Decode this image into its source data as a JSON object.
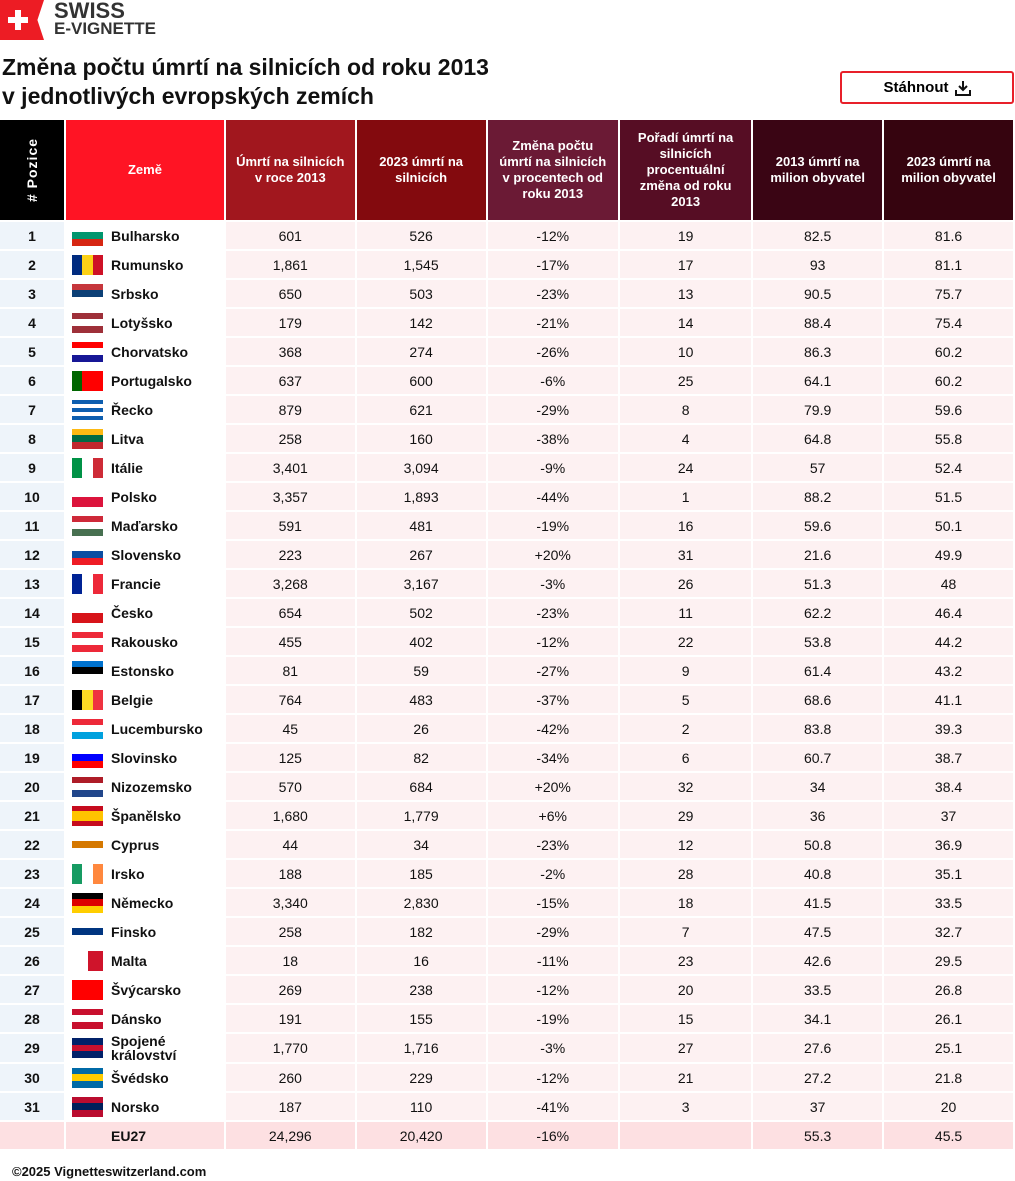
{
  "brand": {
    "line1": "SWISS",
    "line2": "E-VIGNETTE"
  },
  "title": "Změna počtu úmrtí na silnicích od roku 2013 v jednotlivých evropských zemích",
  "download_label": "Stáhnout",
  "header": {
    "pos": "# Pozice",
    "country": "Země",
    "cols": [
      "Úmrtí na silnicích v roce 2013",
      "2023 úmrtí na silnicích",
      "Změna počtu úmrtí na silnicích v procentech od roku 2013",
      "Pořadí úmrtí na silnicích procentuální změna od roku 2013",
      "2013 úmrtí na milion obyvatel",
      "2023 úmrtí na milion obyvatel"
    ],
    "colors": [
      "#000000",
      "#ff1424",
      "#a1171e",
      "#830a0e",
      "#6b1a35",
      "#560d24",
      "#3a0514",
      "#36040f"
    ]
  },
  "rows": [
    [
      "1",
      "Bulharsko",
      "601",
      "526",
      "-12%",
      "19",
      "82.5",
      "81.6",
      [
        "h",
        "#ffffff",
        "#00966e",
        "#d62612"
      ]
    ],
    [
      "2",
      "Rumunsko",
      "1,861",
      "1,545",
      "-17%",
      "17",
      "93",
      "81.1",
      [
        "v",
        "#002b7f",
        "#fcd116",
        "#ce1126"
      ]
    ],
    [
      "3",
      "Srbsko",
      "650",
      "503",
      "-23%",
      "13",
      "90.5",
      "75.7",
      [
        "h",
        "#c6363c",
        "#0c4076",
        "#ffffff"
      ]
    ],
    [
      "4",
      "Lotyšsko",
      "179",
      "142",
      "-21%",
      "14",
      "88.4",
      "75.4",
      [
        "h",
        "#9e3039",
        "#ffffff",
        "#9e3039"
      ]
    ],
    [
      "5",
      "Chorvatsko",
      "368",
      "274",
      "-26%",
      "10",
      "86.3",
      "60.2",
      [
        "h",
        "#ff0000",
        "#ffffff",
        "#171796"
      ]
    ],
    [
      "6",
      "Portugalsko",
      "637",
      "600",
      "-6%",
      "25",
      "64.1",
      "60.2",
      [
        "v",
        "#006600",
        "#ff0000",
        "#ff0000"
      ]
    ],
    [
      "7",
      "Řecko",
      "879",
      "621",
      "-29%",
      "8",
      "79.9",
      "59.6",
      [
        "h",
        "#0d5eaf",
        "#ffffff",
        "#0d5eaf",
        "#ffffff",
        "#0d5eaf"
      ]
    ],
    [
      "8",
      "Litva",
      "258",
      "160",
      "-38%",
      "4",
      "64.8",
      "55.8",
      [
        "h",
        "#fdb913",
        "#006a44",
        "#c1272d"
      ]
    ],
    [
      "9",
      "Itálie",
      "3,401",
      "3,094",
      "-9%",
      "24",
      "57",
      "52.4",
      [
        "v",
        "#009246",
        "#ffffff",
        "#ce2b37"
      ]
    ],
    [
      "10",
      "Polsko",
      "3,357",
      "1,893",
      "-44%",
      "1",
      "88.2",
      "51.5",
      [
        "h",
        "#ffffff",
        "#dc143c"
      ]
    ],
    [
      "11",
      "Maďarsko",
      "591",
      "481",
      "-19%",
      "16",
      "59.6",
      "50.1",
      [
        "h",
        "#ce2939",
        "#ffffff",
        "#477050"
      ]
    ],
    [
      "12",
      "Slovensko",
      "223",
      "267",
      "+20%",
      "31",
      "21.6",
      "49.9",
      [
        "h",
        "#ffffff",
        "#0b4ea2",
        "#ee1c25"
      ]
    ],
    [
      "13",
      "Francie",
      "3,268",
      "3,167",
      "-3%",
      "26",
      "51.3",
      "48",
      [
        "v",
        "#002395",
        "#ffffff",
        "#ed2939"
      ]
    ],
    [
      "14",
      "Česko",
      "654",
      "502",
      "-23%",
      "11",
      "62.2",
      "46.4",
      [
        "h",
        "#ffffff",
        "#d7141a"
      ]
    ],
    [
      "15",
      "Rakousko",
      "455",
      "402",
      "-12%",
      "22",
      "53.8",
      "44.2",
      [
        "h",
        "#ed2939",
        "#ffffff",
        "#ed2939"
      ]
    ],
    [
      "16",
      "Estonsko",
      "81",
      "59",
      "-27%",
      "9",
      "61.4",
      "43.2",
      [
        "h",
        "#0072ce",
        "#000000",
        "#ffffff"
      ]
    ],
    [
      "17",
      "Belgie",
      "764",
      "483",
      "-37%",
      "5",
      "68.6",
      "41.1",
      [
        "v",
        "#000000",
        "#fdda24",
        "#ef3340"
      ]
    ],
    [
      "18",
      "Lucembursko",
      "45",
      "26",
      "-42%",
      "2",
      "83.8",
      "39.3",
      [
        "h",
        "#ed2939",
        "#ffffff",
        "#00a1de"
      ]
    ],
    [
      "19",
      "Slovinsko",
      "125",
      "82",
      "-34%",
      "6",
      "60.7",
      "38.7",
      [
        "h",
        "#ffffff",
        "#0000ff",
        "#ff0000"
      ]
    ],
    [
      "20",
      "Nizozemsko",
      "570",
      "684",
      "+20%",
      "32",
      "34",
      "38.4",
      [
        "h",
        "#ae1c28",
        "#ffffff",
        "#21468b"
      ]
    ],
    [
      "21",
      "Španělsko",
      "1,680",
      "1,779",
      "+6%",
      "29",
      "36",
      "37",
      [
        "h",
        "#c60b1e",
        "#ffc400",
        "#ffc400",
        "#c60b1e"
      ]
    ],
    [
      "22",
      "Cyprus",
      "44",
      "34",
      "-23%",
      "12",
      "50.8",
      "36.9",
      [
        "h",
        "#ffffff",
        "#d57800",
        "#ffffff"
      ]
    ],
    [
      "23",
      "Irsko",
      "188",
      "185",
      "-2%",
      "28",
      "40.8",
      "35.1",
      [
        "v",
        "#169b62",
        "#ffffff",
        "#ff883e"
      ]
    ],
    [
      "24",
      "Německo",
      "3,340",
      "2,830",
      "-15%",
      "18",
      "41.5",
      "33.5",
      [
        "h",
        "#000000",
        "#dd0000",
        "#ffce00"
      ]
    ],
    [
      "25",
      "Finsko",
      "258",
      "182",
      "-29%",
      "7",
      "47.5",
      "32.7",
      [
        "h",
        "#ffffff",
        "#003580",
        "#ffffff"
      ]
    ],
    [
      "26",
      "Malta",
      "18",
      "16",
      "-11%",
      "23",
      "42.6",
      "29.5",
      [
        "v",
        "#ffffff",
        "#cf142b"
      ]
    ],
    [
      "27",
      "Švýcarsko",
      "269",
      "238",
      "-12%",
      "20",
      "33.5",
      "26.8",
      [
        "h",
        "#ff0000"
      ]
    ],
    [
      "28",
      "Dánsko",
      "191",
      "155",
      "-19%",
      "15",
      "34.1",
      "26.1",
      [
        "h",
        "#c8102e",
        "#ffffff",
        "#c8102e"
      ]
    ],
    [
      "29",
      "Spojené království",
      "1,770",
      "1,716",
      "-3%",
      "27",
      "27.6",
      "25.1",
      [
        "h",
        "#012169",
        "#c8102e",
        "#012169"
      ]
    ],
    [
      "30",
      "Švédsko",
      "260",
      "229",
      "-12%",
      "21",
      "27.2",
      "21.8",
      [
        "h",
        "#006aa7",
        "#fecc00",
        "#006aa7"
      ]
    ],
    [
      "31",
      "Norsko",
      "187",
      "110",
      "-41%",
      "3",
      "37",
      "20",
      [
        "h",
        "#ba0c2f",
        "#00205b",
        "#ba0c2f"
      ]
    ]
  ],
  "total": [
    "",
    "EU27",
    "24,296",
    "20,420",
    "-16%",
    "",
    "55.3",
    "45.5"
  ],
  "footer": "©2025 Vignetteswitzerland.com"
}
